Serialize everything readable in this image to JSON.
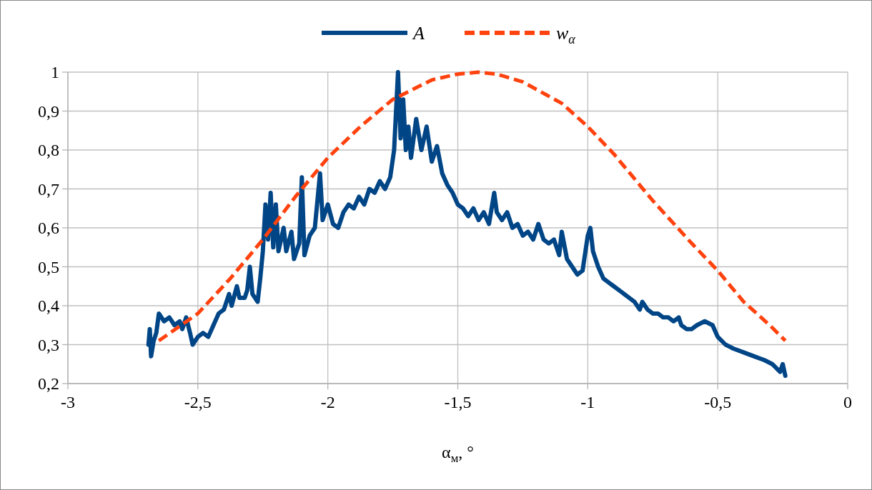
{
  "chart_data": {
    "type": "line",
    "xlabel": "α$_{м}$, °",
    "xlim": [
      -3,
      0
    ],
    "xticks": [
      {
        "value": -3,
        "label": "-3"
      },
      {
        "value": -2.5,
        "label": "-2,5"
      },
      {
        "value": -2,
        "label": "-2"
      },
      {
        "value": -1.5,
        "label": "-1,5"
      },
      {
        "value": -1,
        "label": "-1"
      },
      {
        "value": -0.5,
        "label": "-0,5"
      },
      {
        "value": 0,
        "label": "0"
      }
    ],
    "ylim": [
      0.2,
      1
    ],
    "yticks": [
      {
        "value": 0.2,
        "label": "0,2"
      },
      {
        "value": 0.3,
        "label": "0,3"
      },
      {
        "value": 0.4,
        "label": "0,4"
      },
      {
        "value": 0.5,
        "label": "0,5"
      },
      {
        "value": 0.6,
        "label": "0,6"
      },
      {
        "value": 0.7,
        "label": "0,7"
      },
      {
        "value": 0.8,
        "label": "0,8"
      },
      {
        "value": 0.9,
        "label": "0,9"
      },
      {
        "value": 1,
        "label": "1"
      }
    ],
    "grid": true,
    "legend": "top",
    "series": [
      {
        "name": "A",
        "color": "#004586",
        "line_style": "solid",
        "x": [
          -2.69,
          -2.685,
          -2.68,
          -2.67,
          -2.66,
          -2.65,
          -2.63,
          -2.61,
          -2.59,
          -2.57,
          -2.56,
          -2.545,
          -2.53,
          -2.52,
          -2.5,
          -2.48,
          -2.46,
          -2.44,
          -2.42,
          -2.4,
          -2.38,
          -2.37,
          -2.35,
          -2.34,
          -2.32,
          -2.31,
          -2.3,
          -2.29,
          -2.27,
          -2.26,
          -2.25,
          -2.24,
          -2.23,
          -2.22,
          -2.21,
          -2.2,
          -2.19,
          -2.17,
          -2.16,
          -2.14,
          -2.13,
          -2.11,
          -2.1,
          -2.09,
          -2.07,
          -2.05,
          -2.03,
          -2.02,
          -2,
          -1.98,
          -1.96,
          -1.94,
          -1.92,
          -1.9,
          -1.88,
          -1.86,
          -1.84,
          -1.82,
          -1.8,
          -1.78,
          -1.76,
          -1.745,
          -1.73,
          -1.72,
          -1.71,
          -1.7,
          -1.69,
          -1.68,
          -1.66,
          -1.64,
          -1.62,
          -1.6,
          -1.58,
          -1.56,
          -1.54,
          -1.52,
          -1.5,
          -1.48,
          -1.46,
          -1.44,
          -1.42,
          -1.4,
          -1.38,
          -1.36,
          -1.35,
          -1.33,
          -1.31,
          -1.29,
          -1.27,
          -1.25,
          -1.23,
          -1.21,
          -1.19,
          -1.17,
          -1.15,
          -1.13,
          -1.11,
          -1.1,
          -1.08,
          -1.06,
          -1.04,
          -1.02,
          -1,
          -0.99,
          -0.98,
          -0.96,
          -0.94,
          -0.92,
          -0.9,
          -0.88,
          -0.86,
          -0.84,
          -0.82,
          -0.8,
          -0.79,
          -0.77,
          -0.75,
          -0.73,
          -0.71,
          -0.69,
          -0.67,
          -0.65,
          -0.64,
          -0.62,
          -0.6,
          -0.58,
          -0.55,
          -0.52,
          -0.5,
          -0.47,
          -0.44,
          -0.4,
          -0.36,
          -0.32,
          -0.29,
          -0.26,
          -0.25,
          -0.24
        ],
        "values": [
          0.3,
          0.34,
          0.27,
          0.31,
          0.33,
          0.38,
          0.36,
          0.37,
          0.35,
          0.36,
          0.34,
          0.37,
          0.33,
          0.3,
          0.32,
          0.33,
          0.32,
          0.35,
          0.38,
          0.39,
          0.43,
          0.4,
          0.45,
          0.42,
          0.42,
          0.44,
          0.5,
          0.43,
          0.41,
          0.47,
          0.54,
          0.66,
          0.57,
          0.69,
          0.55,
          0.66,
          0.54,
          0.6,
          0.54,
          0.59,
          0.52,
          0.56,
          0.73,
          0.53,
          0.58,
          0.6,
          0.74,
          0.62,
          0.66,
          0.61,
          0.6,
          0.64,
          0.66,
          0.65,
          0.68,
          0.66,
          0.7,
          0.69,
          0.72,
          0.7,
          0.73,
          0.8,
          1,
          0.83,
          0.93,
          0.8,
          0.86,
          0.78,
          0.88,
          0.8,
          0.86,
          0.77,
          0.81,
          0.74,
          0.71,
          0.69,
          0.66,
          0.65,
          0.63,
          0.65,
          0.62,
          0.64,
          0.61,
          0.69,
          0.64,
          0.62,
          0.64,
          0.6,
          0.61,
          0.58,
          0.59,
          0.57,
          0.61,
          0.57,
          0.56,
          0.57,
          0.53,
          0.59,
          0.52,
          0.5,
          0.48,
          0.49,
          0.58,
          0.6,
          0.54,
          0.5,
          0.47,
          0.46,
          0.45,
          0.44,
          0.43,
          0.42,
          0.41,
          0.39,
          0.41,
          0.39,
          0.38,
          0.38,
          0.37,
          0.37,
          0.36,
          0.37,
          0.35,
          0.34,
          0.34,
          0.35,
          0.36,
          0.35,
          0.32,
          0.3,
          0.29,
          0.28,
          0.27,
          0.26,
          0.25,
          0.23,
          0.25,
          0.22
        ]
      },
      {
        "name": "w$_{α}$",
        "color": "#ff420e",
        "line_style": "dashed",
        "x": [
          -2.65,
          -2.5,
          -2.375,
          -2.25,
          -2.125,
          -2,
          -1.875,
          -1.75,
          -1.6,
          -1.5,
          -1.42,
          -1.35,
          -1.25,
          -1.1,
          -1,
          -0.9,
          -0.75,
          -0.6,
          -0.5,
          -0.4,
          -0.3,
          -0.24
        ],
        "values": [
          0.31,
          0.38,
          0.47,
          0.57,
          0.68,
          0.78,
          0.86,
          0.93,
          0.98,
          0.995,
          1,
          0.995,
          0.975,
          0.92,
          0.86,
          0.79,
          0.67,
          0.56,
          0.49,
          0.41,
          0.35,
          0.31
        ]
      }
    ]
  }
}
